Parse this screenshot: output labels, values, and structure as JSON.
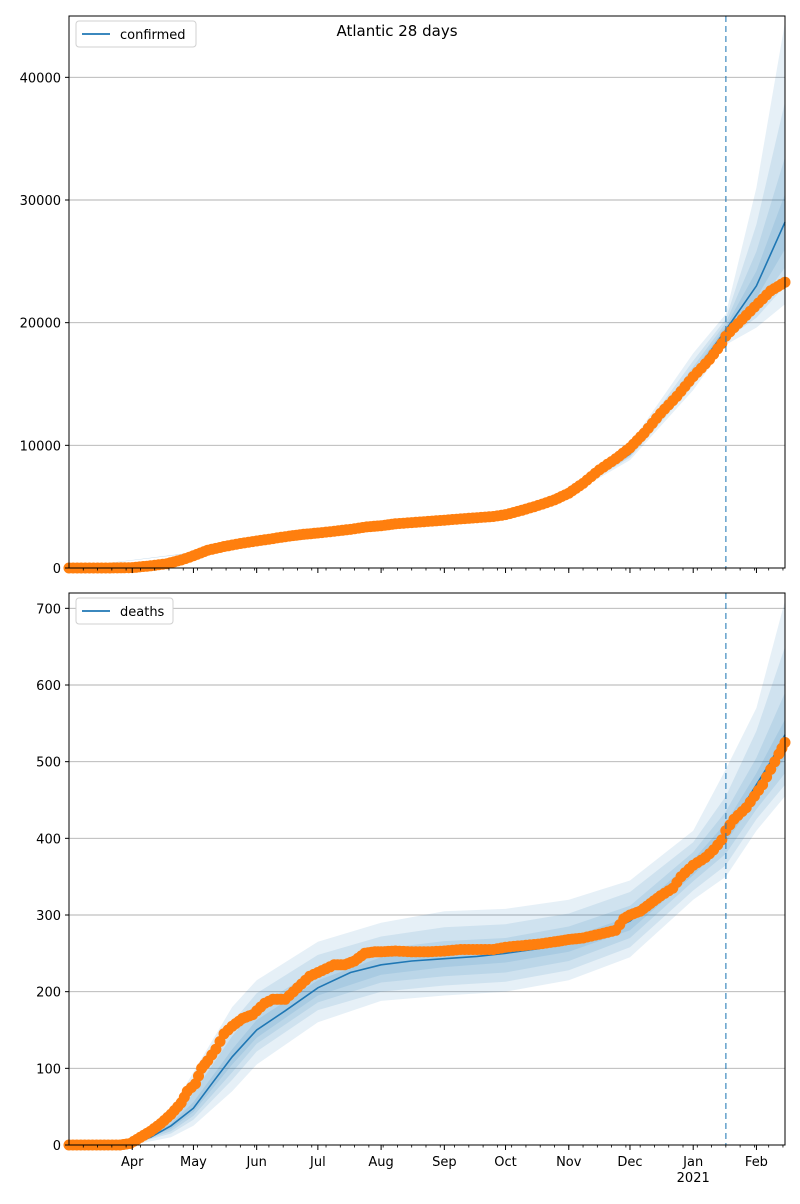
{
  "title": "Atlantic 28 days",
  "colors": {
    "line": "#1f77b4",
    "obs": "#ff7f0e",
    "band": "#1f77b4",
    "grid": "#b0b0b0",
    "vline": "#1f77b4"
  },
  "x_axis": {
    "domain": [
      0,
      351
    ],
    "ticks": [
      {
        "day": 31,
        "label": "Apr"
      },
      {
        "day": 61,
        "label": "May"
      },
      {
        "day": 92,
        "label": "Jun"
      },
      {
        "day": 122,
        "label": "Jul"
      },
      {
        "day": 153,
        "label": "Aug"
      },
      {
        "day": 184,
        "label": "Sep"
      },
      {
        "day": 214,
        "label": "Oct"
      },
      {
        "day": 245,
        "label": "Nov"
      },
      {
        "day": 275,
        "label": "Dec"
      },
      {
        "day": 306,
        "label": "Jan"
      },
      {
        "day": 337,
        "label": "Feb"
      }
    ],
    "year_label": "2021",
    "year_label_day": 306,
    "vline_day": 322
  },
  "chart_data": [
    {
      "type": "line",
      "series_name": "confirmed",
      "legend_label": "confirmed",
      "ylim": [
        0,
        45000
      ],
      "yticks": [
        "0",
        "10000",
        "20000",
        "30000",
        "40000"
      ],
      "fit": {
        "x": [
          0,
          31,
          61,
          92,
          122,
          153,
          184,
          214,
          245,
          275,
          306,
          322,
          337,
          351
        ],
        "y": [
          0,
          50,
          900,
          2200,
          2850,
          3450,
          3900,
          4350,
          6100,
          9300,
          15700,
          19400,
          23000,
          28200
        ]
      },
      "bands": [
        {
          "x": [
            0,
            214,
            245,
            275,
            306,
            322,
            337,
            351
          ],
          "low": [
            0,
            4300,
            5900,
            8800,
            14500,
            18200,
            19600,
            21500
          ],
          "high": [
            0,
            4500,
            6400,
            10100,
            17500,
            20700,
            31000,
            44500
          ]
        },
        {
          "x": [
            0,
            214,
            245,
            275,
            306,
            322,
            337,
            351
          ],
          "low": [
            0,
            4300,
            6000,
            9000,
            14900,
            18600,
            20400,
            23000
          ],
          "high": [
            0,
            4450,
            6300,
            9800,
            16900,
            20300,
            28000,
            38000
          ]
        },
        {
          "x": [
            0,
            214,
            245,
            275,
            306,
            322,
            337,
            351
          ],
          "low": [
            0,
            4300,
            6000,
            9100,
            15200,
            18900,
            21300,
            24500
          ],
          "high": [
            0,
            4400,
            6200,
            9600,
            16400,
            20000,
            25800,
            33500
          ]
        },
        {
          "x": [
            0,
            214,
            245,
            275,
            306,
            322,
            337,
            351
          ],
          "low": [
            0,
            4320,
            6050,
            9200,
            15400,
            19100,
            22000,
            26000
          ],
          "high": [
            0,
            4380,
            6150,
            9400,
            16000,
            19700,
            24200,
            30500
          ]
        }
      ],
      "observed": {
        "x": [
          0,
          20,
          31,
          40,
          48,
          55,
          61,
          68,
          76,
          84,
          92,
          100,
          108,
          115,
          122,
          130,
          138,
          146,
          153,
          160,
          168,
          176,
          184,
          192,
          200,
          208,
          214,
          222,
          230,
          238,
          245,
          252,
          260,
          268,
          275,
          282,
          290,
          298,
          306,
          314,
          320,
          322,
          326,
          332,
          338,
          344,
          351
        ],
        "y": [
          0,
          0,
          30,
          180,
          350,
          650,
          1000,
          1450,
          1750,
          2000,
          2200,
          2400,
          2600,
          2750,
          2850,
          3000,
          3150,
          3350,
          3450,
          3600,
          3700,
          3800,
          3900,
          4000,
          4100,
          4200,
          4350,
          4700,
          5100,
          5550,
          6100,
          6900,
          8000,
          8900,
          9800,
          11000,
          12600,
          14000,
          15600,
          17000,
          18300,
          18900,
          19600,
          20600,
          21600,
          22600,
          23300
        ]
      }
    },
    {
      "type": "line",
      "series_name": "deaths",
      "legend_label": "deaths",
      "ylim": [
        0,
        720
      ],
      "yticks": [
        "0",
        "100",
        "200",
        "300",
        "400",
        "500",
        "600",
        "700"
      ],
      "fit": {
        "x": [
          0,
          25,
          31,
          40,
          50,
          61,
          70,
          80,
          92,
          106,
          122,
          138,
          153,
          168,
          184,
          200,
          214,
          230,
          245,
          260,
          275,
          290,
          306,
          315,
          322,
          330,
          337,
          344,
          351
        ],
        "y": [
          0,
          0,
          2,
          10,
          25,
          48,
          80,
          115,
          150,
          175,
          205,
          225,
          235,
          240,
          243,
          246,
          250,
          256,
          265,
          275,
          292,
          325,
          365,
          385,
          410,
          440,
          470,
          500,
          535
        ]
      },
      "bands": [
        {
          "x": [
            0,
            31,
            50,
            61,
            80,
            92,
            122,
            153,
            184,
            214,
            245,
            275,
            306,
            322,
            337,
            351
          ],
          "low": [
            0,
            0,
            10,
            25,
            70,
            105,
            160,
            188,
            195,
            200,
            215,
            245,
            320,
            350,
            410,
            455
          ],
          "high": [
            0,
            6,
            45,
            95,
            180,
            215,
            265,
            290,
            305,
            308,
            320,
            345,
            410,
            490,
            570,
            710
          ]
        },
        {
          "x": [
            0,
            31,
            50,
            61,
            80,
            92,
            122,
            153,
            184,
            214,
            245,
            275,
            306,
            322,
            337,
            351
          ],
          "low": [
            0,
            1,
            15,
            33,
            85,
            122,
            176,
            200,
            208,
            213,
            228,
            258,
            332,
            365,
            425,
            470
          ],
          "high": [
            0,
            5,
            38,
            80,
            160,
            198,
            248,
            272,
            284,
            288,
            302,
            330,
            395,
            455,
            540,
            650
          ]
        },
        {
          "x": [
            0,
            31,
            50,
            61,
            80,
            92,
            122,
            153,
            184,
            214,
            245,
            275,
            306,
            322,
            337,
            351
          ],
          "low": [
            0,
            1,
            18,
            38,
            95,
            132,
            186,
            212,
            220,
            225,
            240,
            270,
            344,
            380,
            438,
            485
          ],
          "high": [
            0,
            4,
            32,
            68,
            142,
            180,
            230,
            256,
            266,
            270,
            285,
            312,
            382,
            435,
            505,
            590
          ]
        },
        {
          "x": [
            0,
            31,
            50,
            61,
            80,
            92,
            122,
            153,
            184,
            214,
            245,
            275,
            306,
            322,
            337,
            351
          ],
          "low": [
            0,
            2,
            21,
            43,
            105,
            140,
            195,
            222,
            232,
            238,
            252,
            280,
            352,
            395,
            452,
            505
          ],
          "high": [
            0,
            3,
            28,
            56,
            125,
            163,
            215,
            245,
            252,
            258,
            270,
            298,
            372,
            420,
            485,
            555
          ]
        }
      ],
      "observed": {
        "x": [
          0,
          25,
          30,
          35,
          40,
          45,
          50,
          55,
          58,
          62,
          65,
          68,
          72,
          76,
          80,
          85,
          90,
          96,
          100,
          106,
          112,
          116,
          118,
          122,
          126,
          130,
          135,
          140,
          145,
          150,
          153,
          160,
          168,
          176,
          184,
          192,
          200,
          208,
          214,
          222,
          230,
          238,
          245,
          252,
          260,
          268,
          272,
          275,
          280,
          285,
          290,
          296,
          300,
          306,
          312,
          316,
          320,
          322,
          326,
          332,
          336,
          340,
          344,
          348,
          351
        ],
        "y": [
          0,
          0,
          2,
          10,
          18,
          28,
          40,
          55,
          70,
          80,
          100,
          110,
          125,
          145,
          155,
          165,
          170,
          185,
          190,
          190,
          205,
          215,
          220,
          225,
          230,
          235,
          235,
          240,
          250,
          252,
          252,
          253,
          252,
          252,
          253,
          255,
          255,
          255,
          258,
          260,
          262,
          265,
          268,
          270,
          275,
          280,
          295,
          300,
          305,
          315,
          325,
          335,
          350,
          365,
          375,
          385,
          398,
          410,
          425,
          440,
          455,
          470,
          490,
          510,
          525
        ]
      }
    }
  ]
}
